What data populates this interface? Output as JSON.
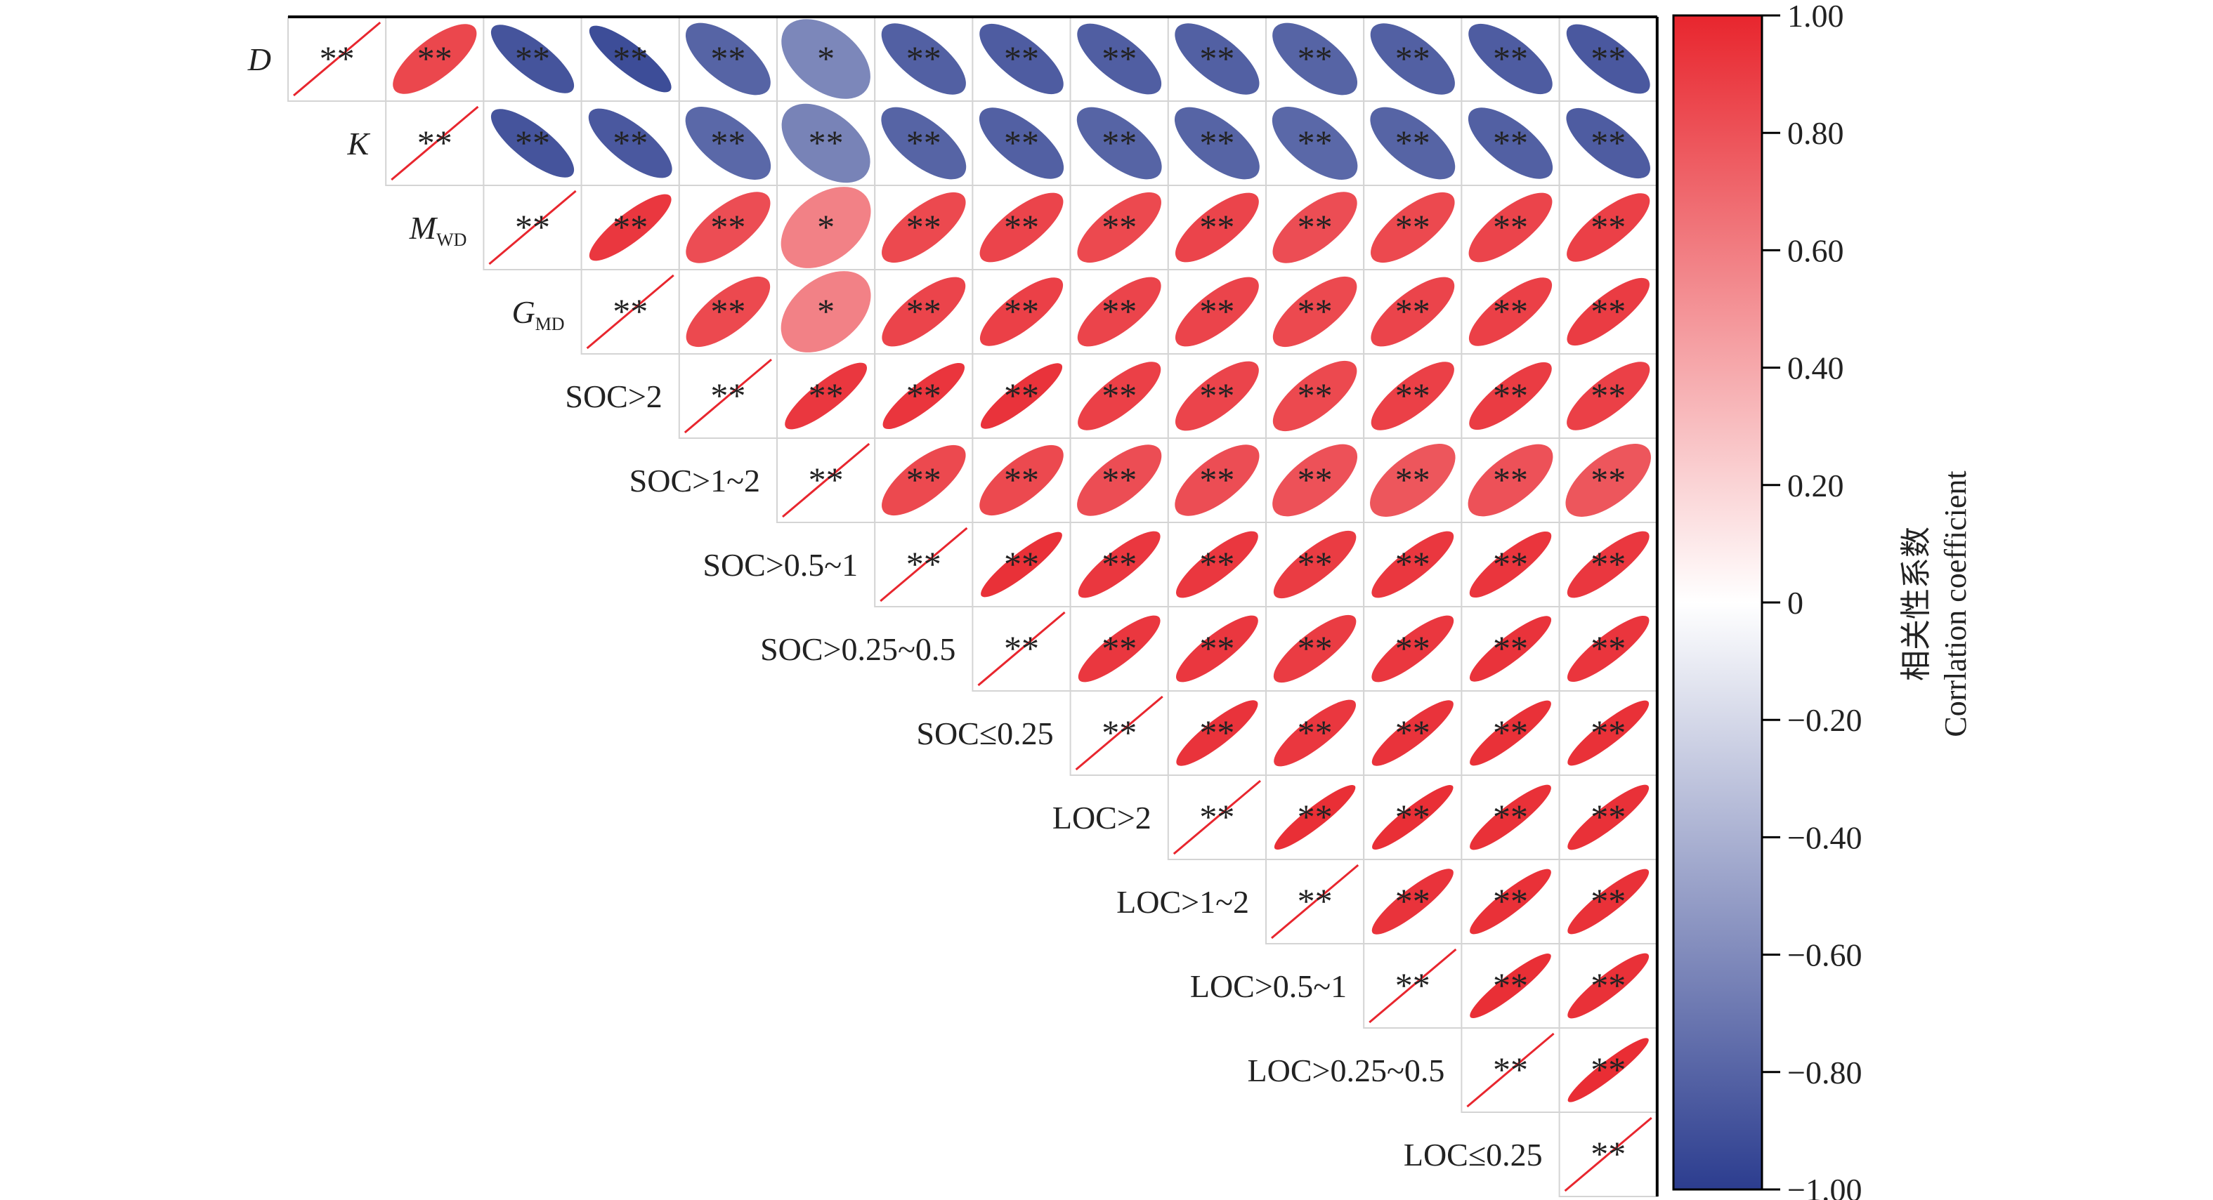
{
  "chart_data": {
    "type": "heatmap",
    "subtype": "upper-triangular correlation matrix with ellipse glyphs",
    "variables": [
      {
        "main": "D",
        "sub": "",
        "italic": true
      },
      {
        "main": "K",
        "sub": "",
        "italic": true
      },
      {
        "main": "M",
        "sub": "WD",
        "italic": true
      },
      {
        "main": "G",
        "sub": "MD",
        "italic": true
      },
      {
        "main": "SOC>2",
        "sub": "",
        "italic": false
      },
      {
        "main": "SOC>1~2",
        "sub": "",
        "italic": false
      },
      {
        "main": "SOC>0.5~1",
        "sub": "",
        "italic": false
      },
      {
        "main": "SOC>0.25~0.5",
        "sub": "",
        "italic": false
      },
      {
        "main": "SOC≤0.25",
        "sub": "",
        "italic": false
      },
      {
        "main": "LOC>2",
        "sub": "",
        "italic": false
      },
      {
        "main": "LOC>1~2",
        "sub": "",
        "italic": false
      },
      {
        "main": "LOC>0.5~1",
        "sub": "",
        "italic": false
      },
      {
        "main": "LOC>0.25~0.5",
        "sub": "",
        "italic": false
      },
      {
        "main": "LOC≤0.25",
        "sub": "",
        "italic": false
      }
    ],
    "matrix": [
      [
        1.0,
        0.85,
        -0.88,
        -0.92,
        -0.8,
        -0.62,
        -0.82,
        -0.84,
        -0.83,
        -0.82,
        -0.8,
        -0.82,
        -0.84,
        -0.86
      ],
      [
        null,
        1.0,
        -0.88,
        -0.86,
        -0.78,
        -0.64,
        -0.8,
        -0.82,
        -0.8,
        -0.8,
        -0.78,
        -0.8,
        -0.82,
        -0.84
      ],
      [
        null,
        null,
        1.0,
        0.92,
        0.82,
        0.58,
        0.84,
        0.86,
        0.84,
        0.86,
        0.82,
        0.84,
        0.86,
        0.88
      ],
      [
        null,
        null,
        null,
        1.0,
        0.84,
        0.58,
        0.86,
        0.88,
        0.86,
        0.86,
        0.84,
        0.86,
        0.88,
        0.9
      ],
      [
        null,
        null,
        null,
        null,
        1.0,
        0.92,
        0.93,
        0.94,
        0.88,
        0.86,
        0.84,
        0.88,
        0.9,
        0.88
      ],
      [
        null,
        null,
        null,
        null,
        null,
        1.0,
        0.84,
        0.84,
        0.82,
        0.82,
        0.8,
        0.78,
        0.8,
        0.78
      ],
      [
        null,
        null,
        null,
        null,
        null,
        null,
        1.0,
        0.95,
        0.92,
        0.92,
        0.9,
        0.92,
        0.93,
        0.92
      ],
      [
        null,
        null,
        null,
        null,
        null,
        null,
        null,
        1.0,
        0.92,
        0.92,
        0.9,
        0.92,
        0.94,
        0.93
      ],
      [
        null,
        null,
        null,
        null,
        null,
        null,
        null,
        null,
        1.0,
        0.94,
        0.92,
        0.94,
        0.95,
        0.95
      ],
      [
        null,
        null,
        null,
        null,
        null,
        null,
        null,
        null,
        null,
        1.0,
        0.96,
        0.96,
        0.95,
        0.95
      ],
      [
        null,
        null,
        null,
        null,
        null,
        null,
        null,
        null,
        null,
        null,
        1.0,
        0.94,
        0.95,
        0.95
      ],
      [
        null,
        null,
        null,
        null,
        null,
        null,
        null,
        null,
        null,
        null,
        null,
        1.0,
        0.96,
        0.95
      ],
      [
        null,
        null,
        null,
        null,
        null,
        null,
        null,
        null,
        null,
        null,
        null,
        null,
        1.0,
        0.97
      ],
      [
        null,
        null,
        null,
        null,
        null,
        null,
        null,
        null,
        null,
        null,
        null,
        null,
        null,
        1.0
      ]
    ],
    "significance": [
      [
        "**",
        "**",
        "**",
        "**",
        "**",
        "*",
        "**",
        "**",
        "**",
        "**",
        "**",
        "**",
        "**",
        "**"
      ],
      [
        null,
        "**",
        "**",
        "**",
        "**",
        "**",
        "**",
        "**",
        "**",
        "**",
        "**",
        "**",
        "**",
        "**"
      ],
      [
        null,
        null,
        "**",
        "**",
        "**",
        "*",
        "**",
        "**",
        "**",
        "**",
        "**",
        "**",
        "**",
        "**"
      ],
      [
        null,
        null,
        null,
        "**",
        "**",
        "*",
        "**",
        "**",
        "**",
        "**",
        "**",
        "**",
        "**",
        "**"
      ],
      [
        null,
        null,
        null,
        null,
        "**",
        "**",
        "**",
        "**",
        "**",
        "**",
        "**",
        "**",
        "**",
        "**"
      ],
      [
        null,
        null,
        null,
        null,
        null,
        "**",
        "**",
        "**",
        "**",
        "**",
        "**",
        "**",
        "**",
        "**"
      ],
      [
        null,
        null,
        null,
        null,
        null,
        null,
        "**",
        "**",
        "**",
        "**",
        "**",
        "**",
        "**",
        "**"
      ],
      [
        null,
        null,
        null,
        null,
        null,
        null,
        null,
        "**",
        "**",
        "**",
        "**",
        "**",
        "**",
        "**"
      ],
      [
        null,
        null,
        null,
        null,
        null,
        null,
        null,
        null,
        "**",
        "**",
        "**",
        "**",
        "**",
        "**"
      ],
      [
        null,
        null,
        null,
        null,
        null,
        null,
        null,
        null,
        null,
        "**",
        "**",
        "**",
        "**",
        "**"
      ],
      [
        null,
        null,
        null,
        null,
        null,
        null,
        null,
        null,
        null,
        null,
        "**",
        "**",
        "**",
        "**"
      ],
      [
        null,
        null,
        null,
        null,
        null,
        null,
        null,
        null,
        null,
        null,
        null,
        "**",
        "**",
        "**"
      ],
      [
        null,
        null,
        null,
        null,
        null,
        null,
        null,
        null,
        null,
        null,
        null,
        null,
        "**",
        "**"
      ],
      [
        null,
        null,
        null,
        null,
        null,
        null,
        null,
        null,
        null,
        null,
        null,
        null,
        null,
        "**"
      ]
    ],
    "colorbar": {
      "range": [
        -1.0,
        1.0
      ],
      "ticks": [
        {
          "value": 1.0,
          "label": "1.00"
        },
        {
          "value": 0.8,
          "label": "0.80"
        },
        {
          "value": 0.6,
          "label": "0.60"
        },
        {
          "value": 0.4,
          "label": "0.40"
        },
        {
          "value": 0.2,
          "label": "0.20"
        },
        {
          "value": 0.0,
          "label": "0"
        },
        {
          "value": -0.2,
          "label": "−0.20"
        },
        {
          "value": -0.4,
          "label": "−0.40"
        },
        {
          "value": -0.6,
          "label": "−0.60"
        },
        {
          "value": -0.8,
          "label": "−0.80"
        },
        {
          "value": -1.0,
          "label": "−1.00"
        }
      ],
      "title_line1": "相关性系数",
      "title_line2": "Corrlation coefficient",
      "colors": {
        "negative": "#2c3d8f",
        "zero": "#ffffff",
        "positive": "#e8262e"
      }
    },
    "colors": {
      "grid": "#d4d4d4",
      "frame": "#000000",
      "diagonal_line": "#e8262e",
      "text": "#222222"
    }
  }
}
